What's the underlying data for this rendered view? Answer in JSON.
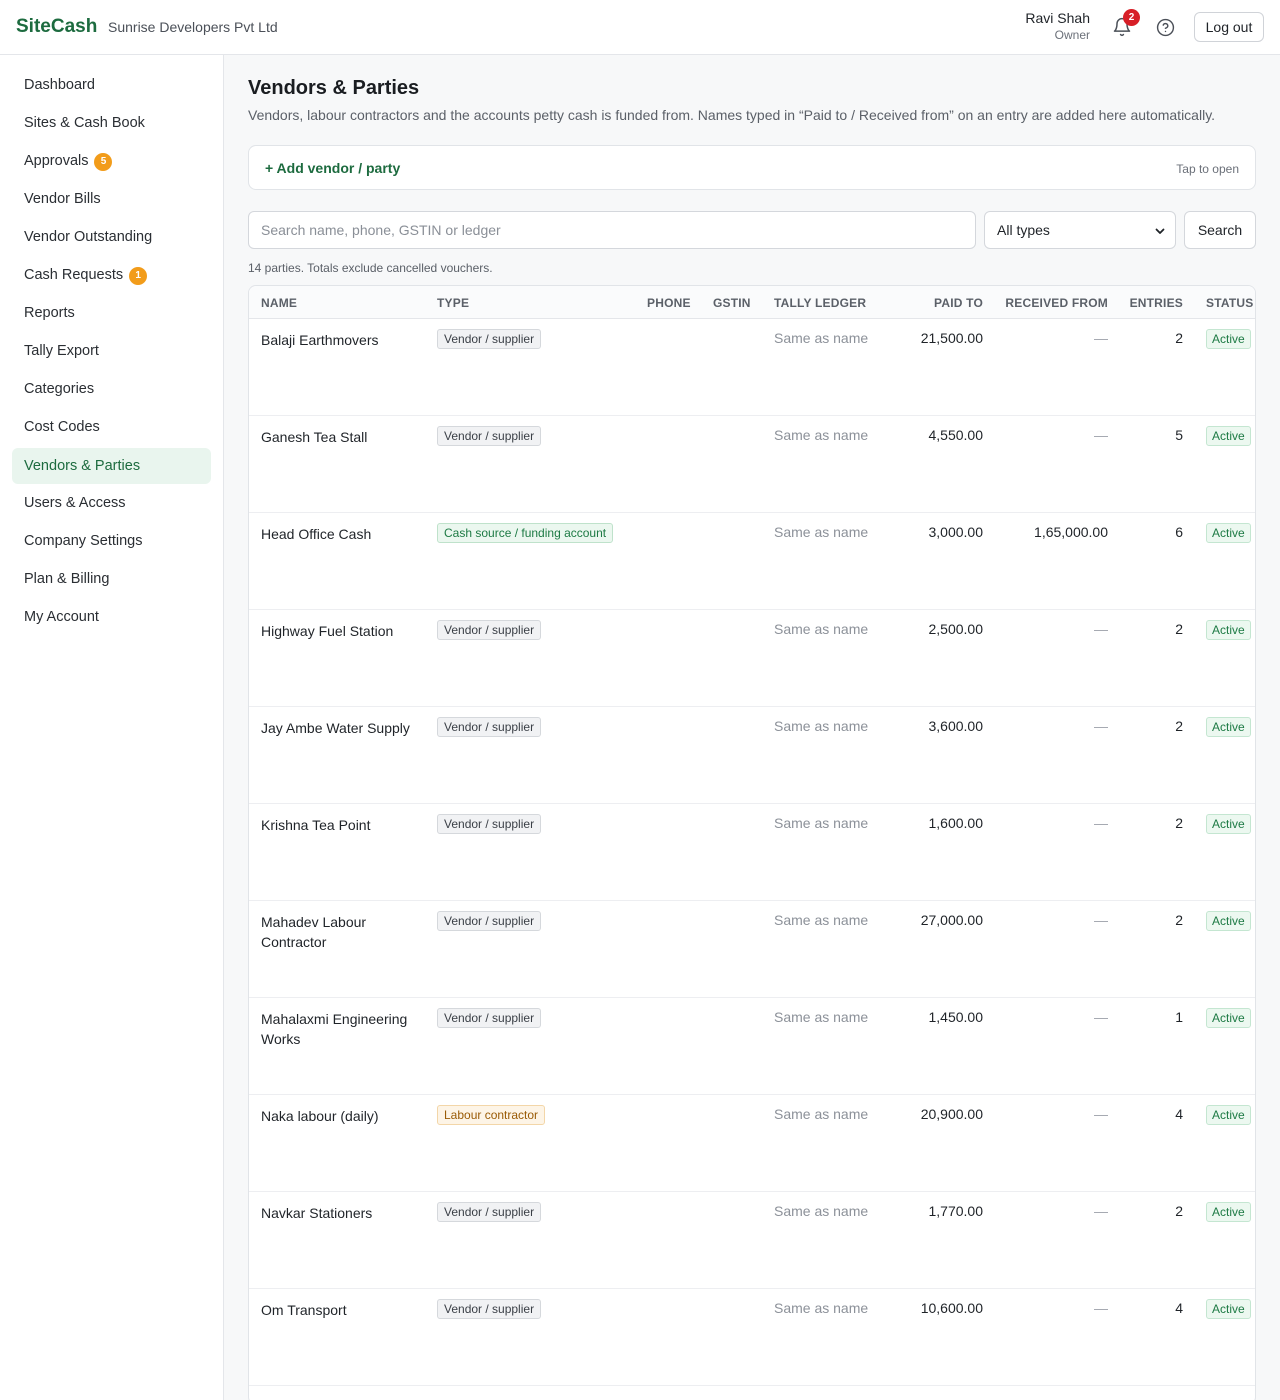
{
  "header": {
    "brand": "SiteCash",
    "company": "Sunrise Developers Pvt Ltd",
    "user_name": "Ravi Shah",
    "user_role": "Owner",
    "notification_count": "2",
    "logout_label": "Log out"
  },
  "sidebar": {
    "items": [
      {
        "label": "Dashboard"
      },
      {
        "label": "Sites & Cash Book"
      },
      {
        "label": "Approvals",
        "badge": "5"
      },
      {
        "label": "Vendor Bills"
      },
      {
        "label": "Vendor Outstanding"
      },
      {
        "label": "Cash Requests",
        "badge": "1"
      },
      {
        "label": "Reports"
      },
      {
        "label": "Tally Export"
      },
      {
        "label": "Categories"
      },
      {
        "label": "Cost Codes"
      },
      {
        "label": "Vendors & Parties",
        "active": true
      },
      {
        "label": "Users & Access"
      },
      {
        "label": "Company Settings"
      },
      {
        "label": "Plan & Billing"
      },
      {
        "label": "My Account"
      }
    ]
  },
  "page": {
    "title": "Vendors & Parties",
    "subtitle": "Vendors, labour contractors and the accounts petty cash is funded from. Names typed in “Paid to / Received from” on an entry are added here automatically.",
    "add_label": "+ Add vendor / party",
    "tap_hint": "Tap to open",
    "search_placeholder": "Search name, phone, GSTIN or ledger",
    "type_filter": "All types",
    "search_button": "Search",
    "count_text": "14 parties. Totals exclude cancelled vouchers."
  },
  "table": {
    "columns": [
      "NAME",
      "TYPE",
      "PHONE",
      "GSTIN",
      "TALLY LEDGER",
      "PAID TO",
      "RECEIVED FROM",
      "ENTRIES",
      "STATUS"
    ],
    "rows": [
      {
        "name": "Balaji Earthmovers",
        "type": "Vendor / supplier",
        "ledger": "Same as name",
        "paid": "21,500.00",
        "received": "—",
        "entries": "2",
        "status": "Active"
      },
      {
        "name": "Ganesh Tea Stall",
        "type": "Vendor / supplier",
        "ledger": "Same as name",
        "paid": "4,550.00",
        "received": "—",
        "entries": "5",
        "status": "Active"
      },
      {
        "name": "Head Office Cash",
        "type": "Cash source / funding account",
        "ledger": "Same as name",
        "paid": "3,000.00",
        "received": "1,65,000.00",
        "entries": "6",
        "status": "Active"
      },
      {
        "name": "Highway Fuel Station",
        "type": "Vendor / supplier",
        "ledger": "Same as name",
        "paid": "2,500.00",
        "received": "—",
        "entries": "2",
        "status": "Active"
      },
      {
        "name": "Jay Ambe Water Supply",
        "type": "Vendor / supplier",
        "ledger": "Same as name",
        "paid": "3,600.00",
        "received": "—",
        "entries": "2",
        "status": "Active"
      },
      {
        "name": "Krishna Tea Point",
        "type": "Vendor / supplier",
        "ledger": "Same as name",
        "paid": "1,600.00",
        "received": "—",
        "entries": "2",
        "status": "Active"
      },
      {
        "name": "Mahadev Labour Contractor",
        "type": "Vendor / supplier",
        "ledger": "Same as name",
        "paid": "27,000.00",
        "received": "—",
        "entries": "2",
        "status": "Active"
      },
      {
        "name": "Mahalaxmi Engineering Works",
        "type": "Vendor / supplier",
        "ledger": "Same as name",
        "paid": "1,450.00",
        "received": "—",
        "entries": "1",
        "status": "Active"
      },
      {
        "name": "Naka labour (daily)",
        "type": "Labour contractor",
        "ledger": "Same as name",
        "paid": "20,900.00",
        "received": "—",
        "entries": "4",
        "status": "Active"
      },
      {
        "name": "Navkar Stationers",
        "type": "Vendor / supplier",
        "ledger": "Same as name",
        "paid": "1,770.00",
        "received": "—",
        "entries": "2",
        "status": "Active"
      },
      {
        "name": "Om Transport",
        "type": "Vendor / supplier",
        "ledger": "Same as name",
        "paid": "10,600.00",
        "received": "—",
        "entries": "4",
        "status": "Active"
      }
    ]
  }
}
